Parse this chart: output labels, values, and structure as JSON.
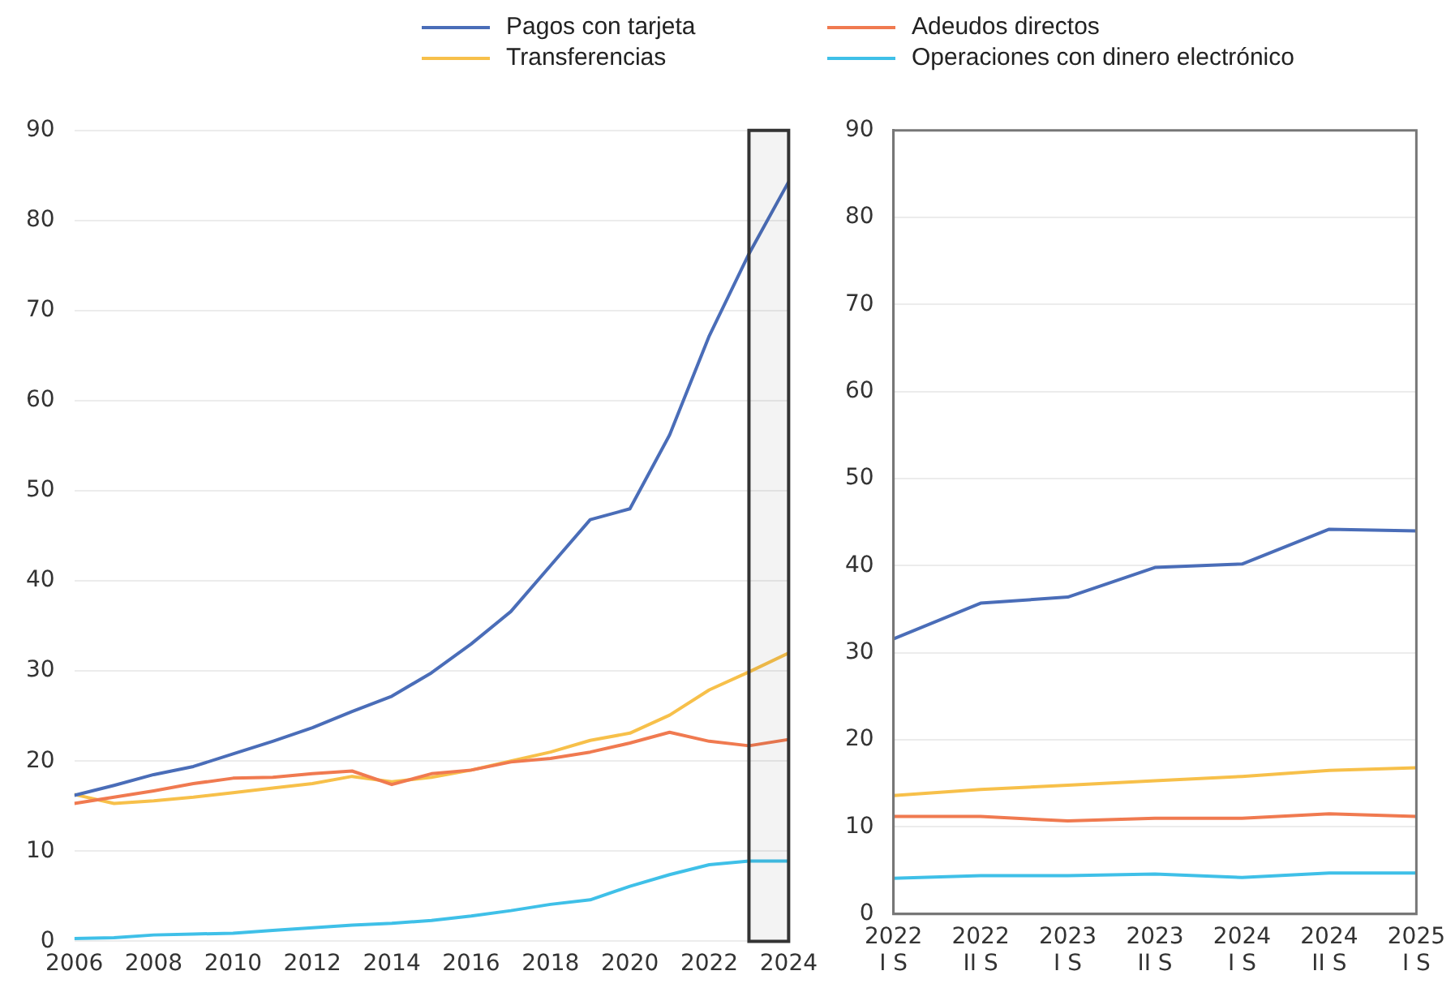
{
  "chart_data": [
    {
      "type": "line",
      "x": [
        2006,
        2007,
        2008,
        2009,
        2010,
        2011,
        2012,
        2013,
        2014,
        2015,
        2016,
        2017,
        2018,
        2019,
        2020,
        2021,
        2022,
        2023,
        2024
      ],
      "xlim": [
        2006,
        2024
      ],
      "xticks": [
        2006,
        2008,
        2010,
        2012,
        2014,
        2016,
        2018,
        2020,
        2022,
        2024
      ],
      "ylim": [
        0,
        90
      ],
      "yticks": [
        0,
        10,
        20,
        30,
        40,
        50,
        60,
        70,
        80,
        90
      ],
      "grid": "y",
      "legend": "top",
      "marker": "none",
      "line_style": "solid",
      "bands": [
        {
          "axis": "x",
          "from": 2023,
          "to": 2024,
          "color": "#333333"
        }
      ],
      "series": [
        {
          "name": "Pagos con tarjeta",
          "color": "#4a6db8",
          "values": [
            16.2,
            17.3,
            18.5,
            19.4,
            20.8,
            22.2,
            23.7,
            25.5,
            27.2,
            29.8,
            33,
            36.6,
            41.7,
            46.8,
            48,
            56.2,
            67.2,
            76.3,
            84.3
          ]
        },
        {
          "name": "Adeudos directos",
          "color": "#f07a50",
          "values": [
            15.3,
            16,
            16.7,
            17.5,
            18.1,
            18.2,
            18.6,
            18.9,
            17.4,
            18.6,
            19,
            19.9,
            20.3,
            21,
            22,
            23.2,
            22.2,
            21.7,
            22.4
          ]
        },
        {
          "name": "Transferencias",
          "color": "#f7c04a",
          "values": [
            16.3,
            15.3,
            15.6,
            16,
            16.5,
            17,
            17.5,
            18.3,
            17.7,
            18.2,
            19,
            20,
            21,
            22.3,
            23.1,
            25.1,
            27.9,
            29.9,
            32
          ]
        },
        {
          "name": "Operaciones con dinero electrónico",
          "color": "#3fc0e8",
          "values": [
            0.3,
            0.4,
            0.7,
            0.8,
            0.9,
            1.2,
            1.5,
            1.8,
            2,
            2.3,
            2.8,
            3.4,
            4.1,
            4.6,
            6.1,
            7.4,
            8.5,
            8.9,
            8.9
          ]
        }
      ]
    },
    {
      "type": "line",
      "categories": [
        "2022 I S",
        "2022 II S",
        "2023 I S",
        "2023 II S",
        "2024 I S",
        "2024 II S",
        "2025 I S"
      ],
      "ylim": [
        0,
        90
      ],
      "yticks": [
        0,
        10,
        20,
        30,
        40,
        50,
        60,
        70,
        80,
        90
      ],
      "grid": "y",
      "marker": "none",
      "line_style": "solid",
      "series": [
        {
          "color": "#4a6db8",
          "values": [
            31.6,
            35.7,
            36.4,
            39.8,
            40.2,
            44.2,
            44
          ]
        },
        {
          "color": "#f07a50",
          "values": [
            11.2,
            11.2,
            10.7,
            11,
            11,
            11.5,
            11.2
          ]
        },
        {
          "color": "#f7c04a",
          "values": [
            13.6,
            14.3,
            14.8,
            15.3,
            15.8,
            16.5,
            16.8
          ]
        },
        {
          "color": "#3fc0e8",
          "values": [
            4.1,
            4.4,
            4.4,
            4.6,
            4.2,
            4.7,
            4.7
          ]
        }
      ]
    }
  ]
}
